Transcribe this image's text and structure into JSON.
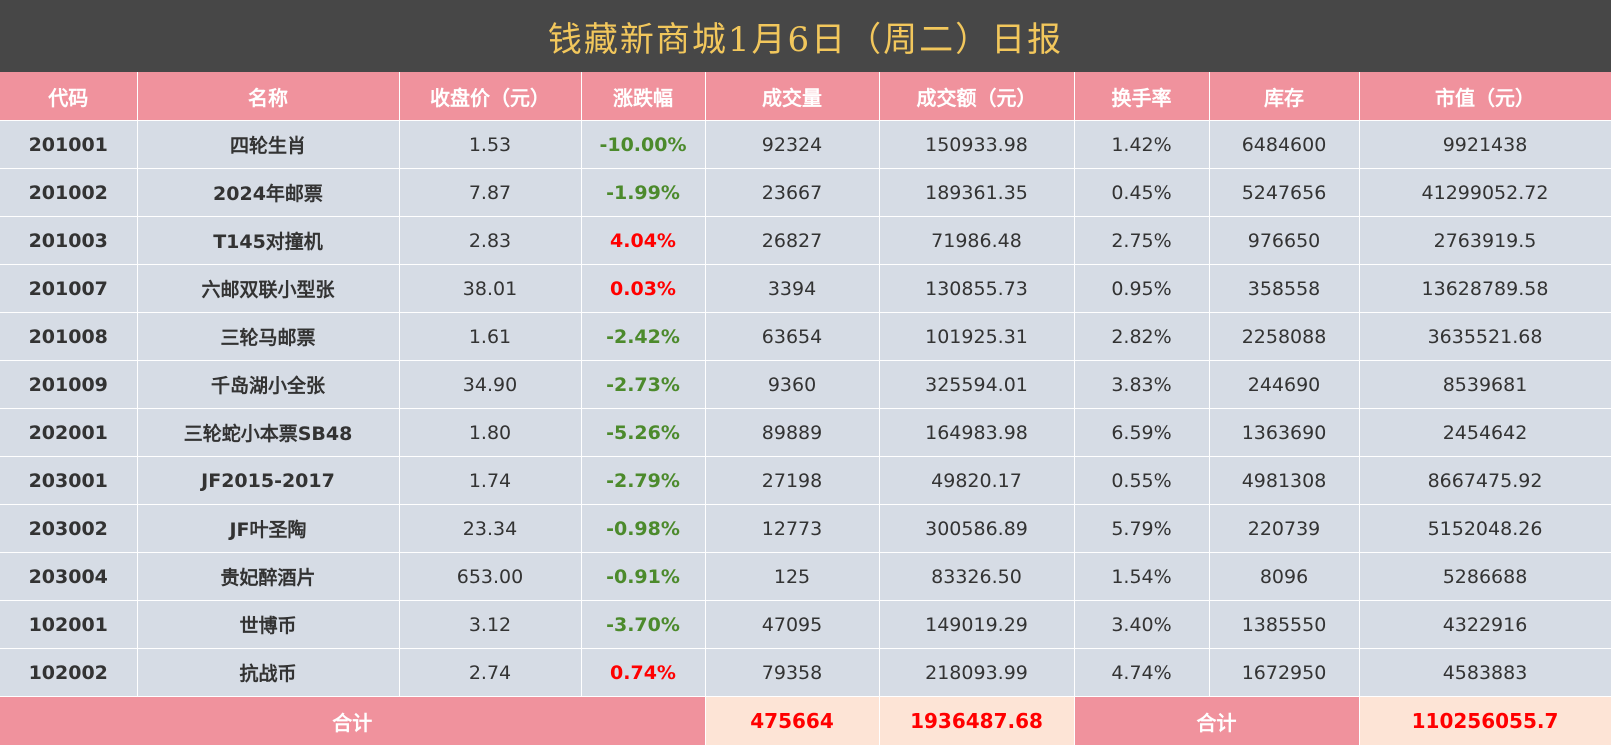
{
  "title": "钱藏新商城1月6日（周二）日报",
  "colors": {
    "title_bg": "#474747",
    "title_text": "#f2c75c",
    "header_bg": "#f0929d",
    "row_bg": "#d6dce5",
    "up": "#ff0000",
    "down": "#4c8a2c",
    "total_value_bg": "#fde4d6"
  },
  "columns": [
    "代码",
    "名称",
    "收盘价（元）",
    "涨跌幅",
    "成交量",
    "成交额（元）",
    "换手率",
    "库存",
    "市值（元）"
  ],
  "rows": [
    {
      "code": "201001",
      "name": "四轮生肖",
      "close": "1.53",
      "change": "-10.00%",
      "dir": "down",
      "volume": "92324",
      "amount": "150933.98",
      "turnover": "1.42%",
      "stock": "6484600",
      "cap": "9921438"
    },
    {
      "code": "201002",
      "name": "2024年邮票",
      "close": "7.87",
      "change": "-1.99%",
      "dir": "down",
      "volume": "23667",
      "amount": "189361.35",
      "turnover": "0.45%",
      "stock": "5247656",
      "cap": "41299052.72"
    },
    {
      "code": "201003",
      "name": "T145对撞机",
      "close": "2.83",
      "change": "4.04%",
      "dir": "up",
      "volume": "26827",
      "amount": "71986.48",
      "turnover": "2.75%",
      "stock": "976650",
      "cap": "2763919.5"
    },
    {
      "code": "201007",
      "name": "六邮双联小型张",
      "close": "38.01",
      "change": "0.03%",
      "dir": "up",
      "volume": "3394",
      "amount": "130855.73",
      "turnover": "0.95%",
      "stock": "358558",
      "cap": "13628789.58"
    },
    {
      "code": "201008",
      "name": "三轮马邮票",
      "close": "1.61",
      "change": "-2.42%",
      "dir": "down",
      "volume": "63654",
      "amount": "101925.31",
      "turnover": "2.82%",
      "stock": "2258088",
      "cap": "3635521.68"
    },
    {
      "code": "201009",
      "name": "千岛湖小全张",
      "close": "34.90",
      "change": "-2.73%",
      "dir": "down",
      "volume": "9360",
      "amount": "325594.01",
      "turnover": "3.83%",
      "stock": "244690",
      "cap": "8539681"
    },
    {
      "code": "202001",
      "name": "三轮蛇小本票SB48",
      "close": "1.80",
      "change": "-5.26%",
      "dir": "down",
      "volume": "89889",
      "amount": "164983.98",
      "turnover": "6.59%",
      "stock": "1363690",
      "cap": "2454642"
    },
    {
      "code": "203001",
      "name": "JF2015-2017",
      "close": "1.74",
      "change": "-2.79%",
      "dir": "down",
      "volume": "27198",
      "amount": "49820.17",
      "turnover": "0.55%",
      "stock": "4981308",
      "cap": "8667475.92"
    },
    {
      "code": "203002",
      "name": "JF叶圣陶",
      "close": "23.34",
      "change": "-0.98%",
      "dir": "down",
      "volume": "12773",
      "amount": "300586.89",
      "turnover": "5.79%",
      "stock": "220739",
      "cap": "5152048.26"
    },
    {
      "code": "203004",
      "name": "贵妃醉酒片",
      "close": "653.00",
      "change": "-0.91%",
      "dir": "down",
      "volume": "125",
      "amount": "83326.50",
      "turnover": "1.54%",
      "stock": "8096",
      "cap": "5286688"
    },
    {
      "code": "102001",
      "name": "世博币",
      "close": "3.12",
      "change": "-3.70%",
      "dir": "down",
      "volume": "47095",
      "amount": "149019.29",
      "turnover": "3.40%",
      "stock": "1385550",
      "cap": "4322916"
    },
    {
      "code": "102002",
      "name": "抗战币",
      "close": "2.74",
      "change": "0.74%",
      "dir": "up",
      "volume": "79358",
      "amount": "218093.99",
      "turnover": "4.74%",
      "stock": "1672950",
      "cap": "4583883"
    }
  ],
  "totals": {
    "label_left": "合计",
    "volume": "475664",
    "amount": "1936487.68",
    "label_right": "合计",
    "cap": "110256055.7"
  }
}
